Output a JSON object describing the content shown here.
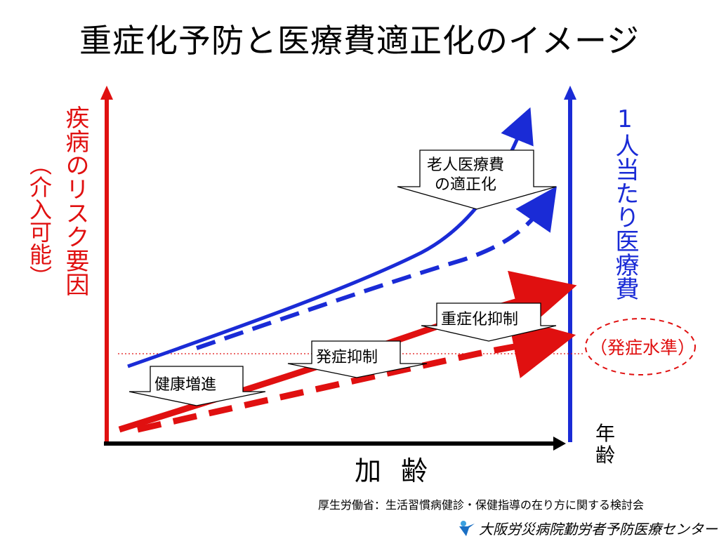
{
  "slide": {
    "title": "重症化予防と医療費適正化のイメージ",
    "left_axis_label": "疾病のリスク要因",
    "left_axis_sublabel": "（介入可能）",
    "right_axis_label": "1人当たり医療費",
    "x_axis_label": "加齢",
    "x_axis_end_label": "年齢",
    "callouts": {
      "elderly_cost": "老人医療費\nの適正化",
      "severity": "重症化抑制",
      "onset": "発症抑制",
      "health": "健康増進"
    },
    "onset_level_label": "（発症水準）",
    "source": "厚生労働省：生活習慣病健診・保健指導の在り方に関する検討会",
    "organization": "大阪労災病院勤労者予防医療センター",
    "colors": {
      "risk": "#e01010",
      "cost": "#1a2bd6",
      "axis": "#000000"
    }
  }
}
